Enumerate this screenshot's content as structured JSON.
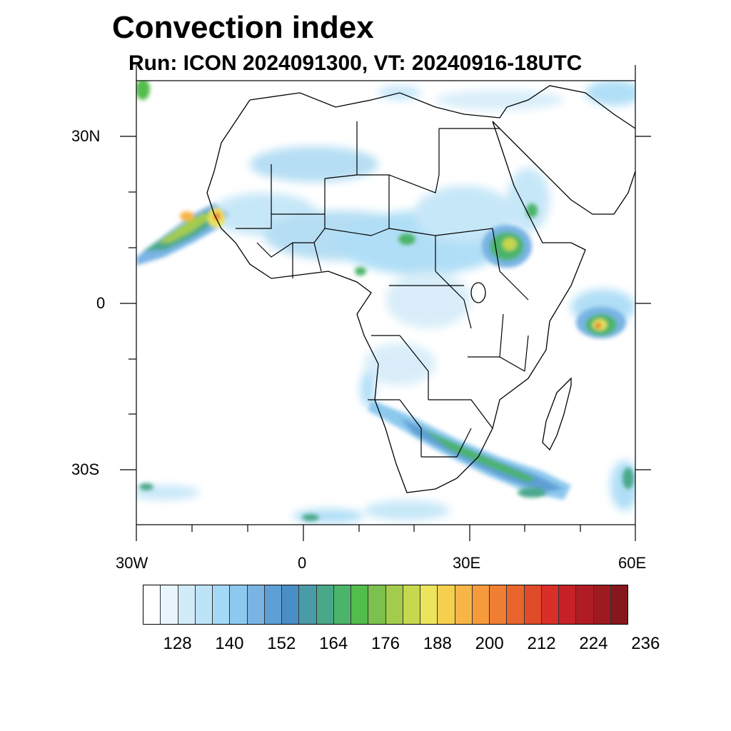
{
  "header": {
    "title": "Convection index",
    "subtitle": "Run: ICON 2024091300,  VT: 20240916-18UTC"
  },
  "map": {
    "region": "Africa",
    "projection": "cylindrical equidistant",
    "lon_range": [
      -30,
      60
    ],
    "lat_range": [
      -40,
      40
    ],
    "lat_tick_labels": [
      "30N",
      "0",
      "30S"
    ],
    "lon_tick_labels": [
      "30W",
      "0",
      "30E",
      "60E"
    ],
    "field": "convection index",
    "hotspots": [
      {
        "name": "west-african-coast-storm",
        "lon": -21,
        "lat": 15,
        "max_level": 212
      },
      {
        "name": "ethiopian-highlands-storm",
        "lon": 37,
        "lat": 10,
        "max_level": 188
      },
      {
        "name": "indian-ocean-storm",
        "lon": 54,
        "lat": -4,
        "max_level": 212
      },
      {
        "name": "southern-africa-band",
        "lon": 35,
        "lat": -30,
        "max_level": 200
      }
    ]
  },
  "colorbar": {
    "labels": [
      "128",
      "140",
      "152",
      "164",
      "176",
      "188",
      "200",
      "212",
      "224",
      "236"
    ],
    "colors": [
      "#ffffff",
      "#e8f5fc",
      "#d2ebf8",
      "#bde3f7",
      "#a3d9f5",
      "#8dc9ee",
      "#79b4e4",
      "#5e9fd5",
      "#4a8ec6",
      "#4a9ba8",
      "#4aa88a",
      "#4cb46a",
      "#52bc4c",
      "#7cc04e",
      "#a3cc4d",
      "#c6d84d",
      "#ece45a",
      "#f5cf4e",
      "#f6b545",
      "#f69a3c",
      "#f07e33",
      "#e8652d",
      "#e04b2a",
      "#d83029",
      "#c52127",
      "#b11c24",
      "#9d1a20",
      "#86171c"
    ]
  }
}
